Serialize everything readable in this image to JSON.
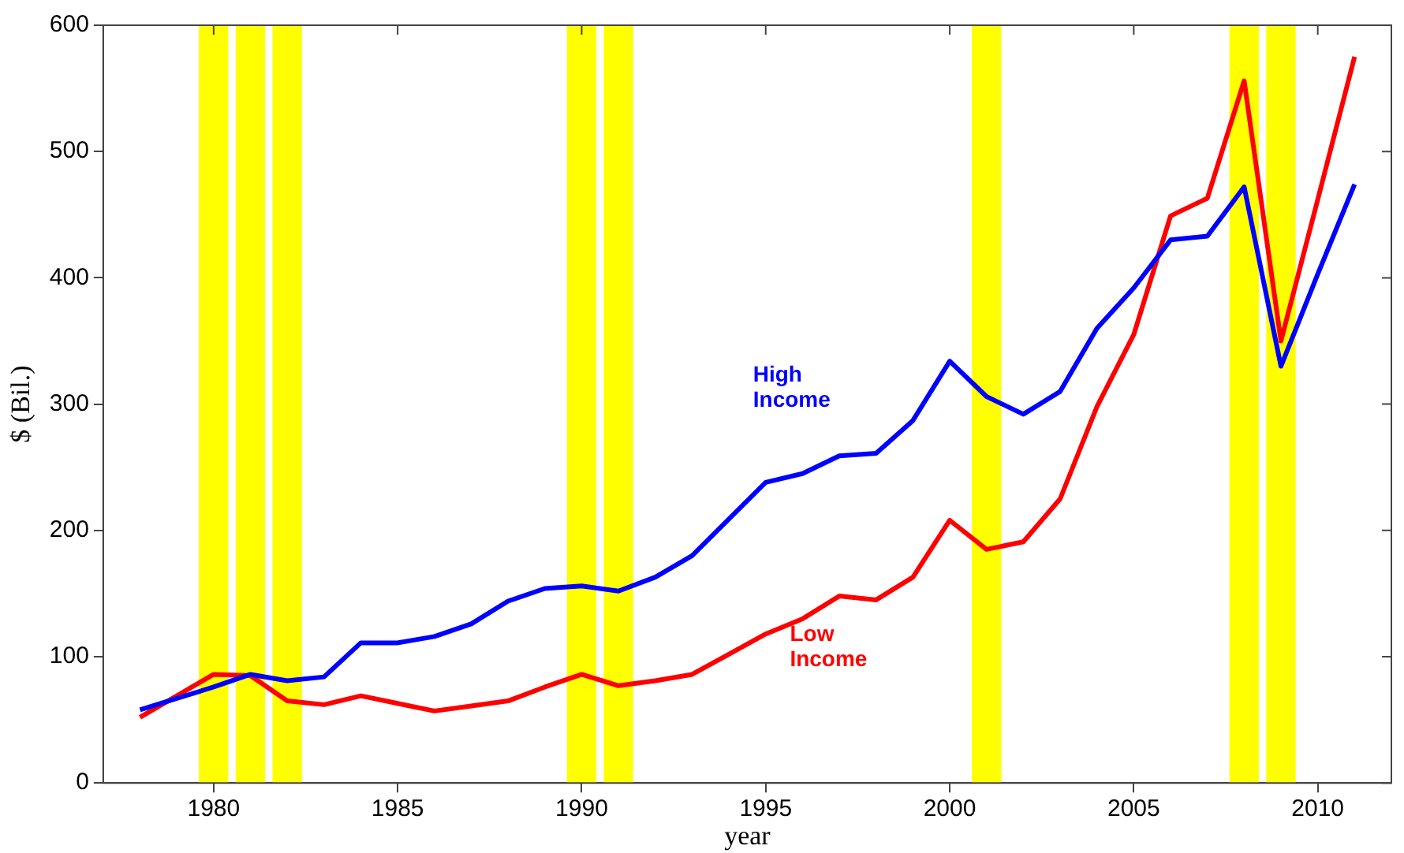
{
  "chart_data": {
    "type": "line",
    "xlabel": "year",
    "ylabel": "$ (Bil.)",
    "x": [
      1978,
      1979,
      1980,
      1981,
      1982,
      1983,
      1984,
      1985,
      1986,
      1987,
      1988,
      1989,
      1990,
      1991,
      1992,
      1993,
      1994,
      1995,
      1996,
      1997,
      1998,
      1999,
      2000,
      2001,
      2002,
      2003,
      2004,
      2005,
      2006,
      2007,
      2008,
      2009,
      2010,
      2011
    ],
    "series": [
      {
        "name": "High Income",
        "color": "#0000ff",
        "values": [
          58,
          67,
          76,
          86,
          81,
          84,
          111,
          111,
          116,
          126,
          144,
          154,
          156,
          152,
          163,
          180,
          209,
          238,
          245,
          259,
          261,
          287,
          334,
          306,
          292,
          310,
          360,
          392,
          430,
          433,
          472,
          330,
          403,
          474
        ]
      },
      {
        "name": "Low Income",
        "color": "#ff0000",
        "values": [
          52,
          69,
          86,
          85,
          65,
          62,
          69,
          63,
          57,
          61,
          65,
          76,
          86,
          77,
          81,
          86,
          102,
          118,
          130,
          148,
          145,
          163,
          208,
          185,
          191,
          225,
          298,
          355,
          449,
          463,
          556,
          350,
          462,
          575
        ]
      }
    ],
    "xlim": [
      1977,
      2012
    ],
    "ylim": [
      0,
      600
    ],
    "xticks": [
      1980,
      1985,
      1990,
      1995,
      2000,
      2005,
      2010
    ],
    "yticks": [
      0,
      100,
      200,
      300,
      400,
      500,
      600
    ],
    "bands": [
      {
        "axis": "x",
        "from": 1979.6,
        "to": 1980.4,
        "color": "#ffff00"
      },
      {
        "axis": "x",
        "from": 1980.6,
        "to": 1981.4,
        "color": "#ffff00"
      },
      {
        "axis": "x",
        "from": 1981.6,
        "to": 1982.4,
        "color": "#ffff00"
      },
      {
        "axis": "x",
        "from": 1989.6,
        "to": 1990.4,
        "color": "#ffff00"
      },
      {
        "axis": "x",
        "from": 1990.6,
        "to": 1991.4,
        "color": "#ffff00"
      },
      {
        "axis": "x",
        "from": 2000.6,
        "to": 2001.4,
        "color": "#ffff00"
      },
      {
        "axis": "x",
        "from": 2007.6,
        "to": 2008.4,
        "color": "#ffff00"
      },
      {
        "axis": "x",
        "from": 2008.6,
        "to": 2009.4,
        "color": "#ffff00"
      }
    ],
    "grid": false,
    "legend": false,
    "marker": "none",
    "line_style": "solid"
  }
}
